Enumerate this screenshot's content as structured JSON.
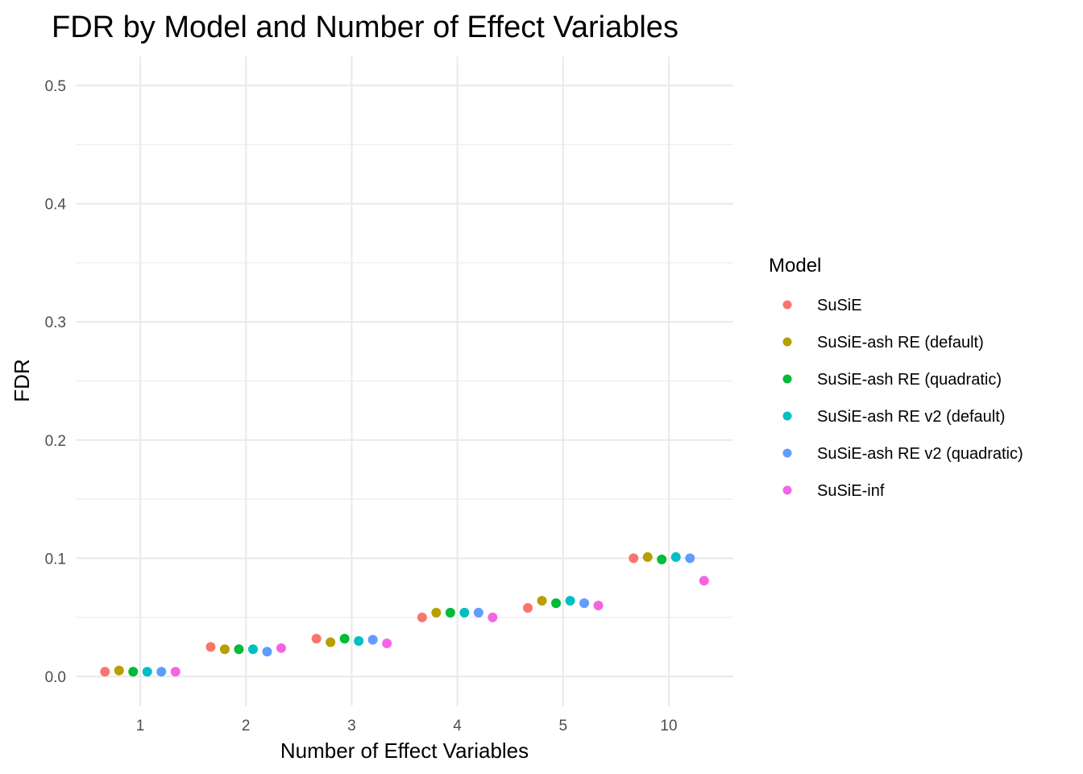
{
  "chart_data": {
    "type": "scatter",
    "title": "FDR by Model and Number of Effect Variables",
    "xlabel": "Number of Effect Variables",
    "ylabel": "FDR",
    "categories": [
      "1",
      "2",
      "3",
      "4",
      "5",
      "10"
    ],
    "ylim": [
      -0.02,
      0.525
    ],
    "yticks": [
      "0.0",
      "0.1",
      "0.2",
      "0.3",
      "0.4",
      "0.5"
    ],
    "grid": true,
    "legend_title": "Model",
    "legend_position": "right",
    "dodge": true,
    "series": [
      {
        "name": "SuSiE",
        "color": "#F8766D",
        "values": [
          0.004,
          0.025,
          0.032,
          0.05,
          0.058,
          0.1
        ]
      },
      {
        "name": "SuSiE-ash RE (default)",
        "color": "#B79F00",
        "values": [
          0.005,
          0.023,
          0.029,
          0.054,
          0.064,
          0.101
        ]
      },
      {
        "name": "SuSiE-ash RE (quadratic)",
        "color": "#00BA38",
        "values": [
          0.004,
          0.023,
          0.032,
          0.054,
          0.062,
          0.099
        ]
      },
      {
        "name": "SuSiE-ash RE v2 (default)",
        "color": "#00BFC4",
        "values": [
          0.004,
          0.023,
          0.03,
          0.054,
          0.064,
          0.101
        ]
      },
      {
        "name": "SuSiE-ash RE v2 (quadratic)",
        "color": "#619CFF",
        "values": [
          0.004,
          0.021,
          0.031,
          0.054,
          0.062,
          0.1
        ]
      },
      {
        "name": "SuSiE-inf",
        "color": "#F564E3",
        "values": [
          0.004,
          0.024,
          0.028,
          0.05,
          0.06,
          0.081
        ]
      }
    ]
  }
}
